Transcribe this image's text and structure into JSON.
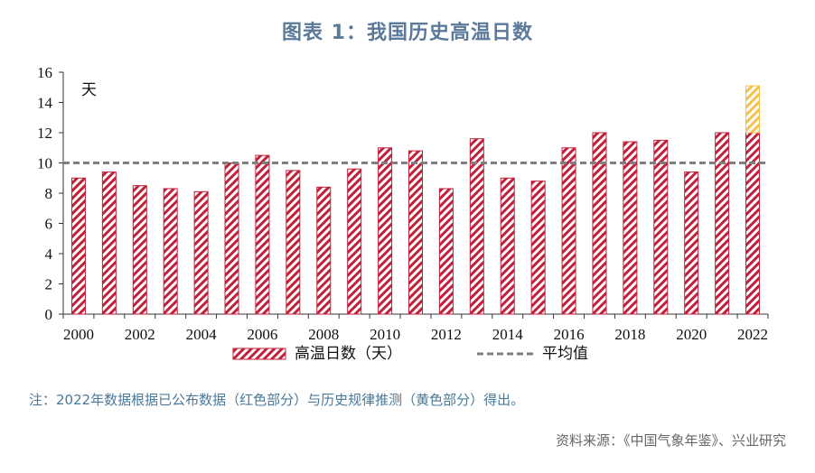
{
  "title": "图表 1：我国历史高温日数",
  "note": "注：2022年数据根据已公布数据（红色部分）与历史规律推测（黄色部分）得出。",
  "source": "资料来源：《中国气象年鉴》、兴业研究",
  "colors": {
    "red": "#c0203a",
    "yellow": "#f2c14e",
    "avg": "#7f7f7f",
    "axis": "#333333"
  },
  "chart_data": {
    "type": "bar",
    "unit_label": "天",
    "ylim": [
      0,
      16
    ],
    "yticks": [
      0,
      2,
      4,
      6,
      8,
      10,
      12,
      14,
      16
    ],
    "categories": [
      "2000",
      "2001",
      "2002",
      "2003",
      "2004",
      "2005",
      "2006",
      "2007",
      "2008",
      "2009",
      "2010",
      "2011",
      "2012",
      "2013",
      "2014",
      "2015",
      "2016",
      "2017",
      "2018",
      "2019",
      "2020",
      "2021",
      "2022"
    ],
    "xtick_labels": [
      "2000",
      "2002",
      "2004",
      "2006",
      "2008",
      "2010",
      "2012",
      "2014",
      "2016",
      "2018",
      "2020",
      "2022"
    ],
    "series": [
      {
        "name": "高温日数（天）",
        "values": [
          9.0,
          9.4,
          8.5,
          8.3,
          8.1,
          10.0,
          10.5,
          9.5,
          8.4,
          9.6,
          11.0,
          10.8,
          8.3,
          11.6,
          9.0,
          8.8,
          11.0,
          12.0,
          11.4,
          11.5,
          9.4,
          12.0,
          12.0
        ]
      }
    ],
    "projected_2022_extra": 3.1,
    "average": {
      "name": "平均值",
      "value": 10.0
    },
    "legend": "bottom"
  }
}
